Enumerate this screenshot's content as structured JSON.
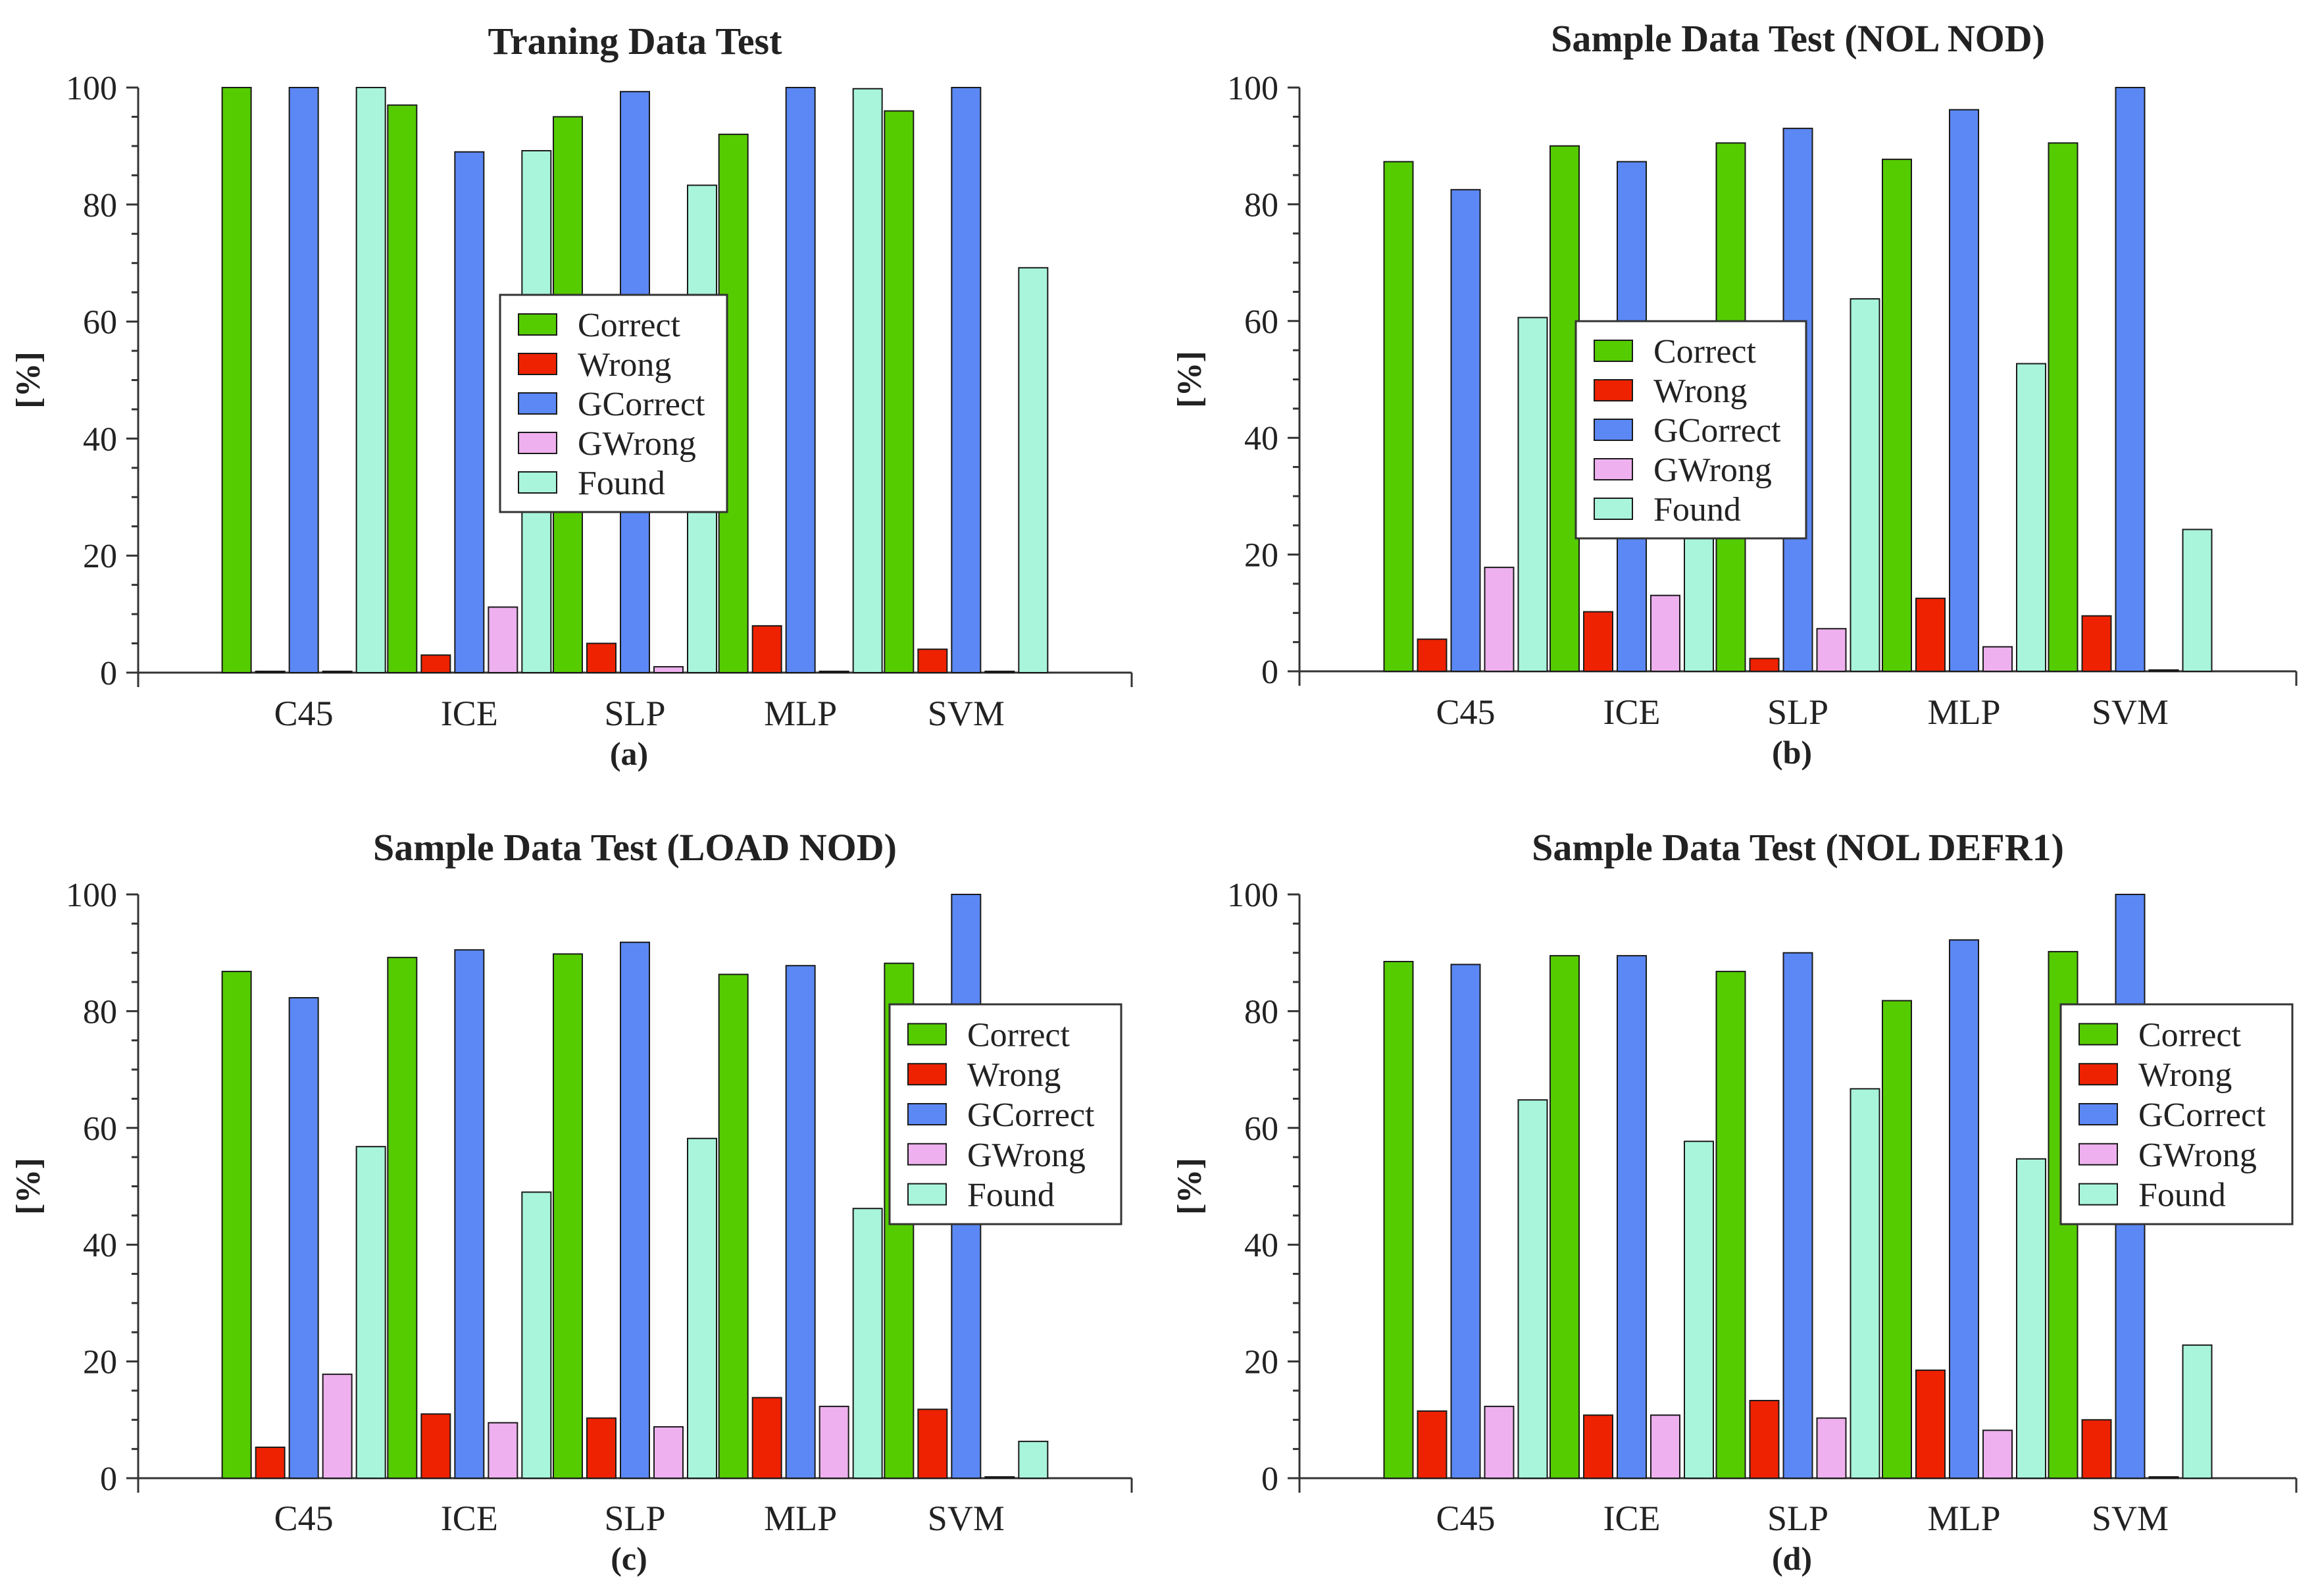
{
  "figure": {
    "series_colors": {
      "Correct": "#55CC00",
      "Wrong": "#EE2200",
      "GCorrect": "#5B88F5",
      "GWrong": "#EEB0EE",
      "Found": "#A8F5DC"
    }
  },
  "chart_data": [
    {
      "type": "bar",
      "title": "Traning Data Test",
      "ylabel": "[%]",
      "sublabel": "(a)",
      "legend": "center",
      "ylim": [
        0,
        100
      ],
      "yticks": [
        "0",
        "20",
        "40",
        "60",
        "80",
        "100"
      ],
      "categories": [
        "C45",
        "ICE",
        "SLP",
        "MLP",
        "SVM"
      ],
      "series": [
        {
          "name": "Correct",
          "values": [
            100,
            97,
            95,
            92,
            96
          ]
        },
        {
          "name": "Wrong",
          "values": [
            0,
            3,
            5,
            8,
            4
          ]
        },
        {
          "name": "GCorrect",
          "values": [
            100,
            89,
            99.3,
            100,
            100
          ]
        },
        {
          "name": "GWrong",
          "values": [
            0,
            11.2,
            1,
            0,
            0
          ]
        },
        {
          "name": "Found",
          "values": [
            100,
            89.2,
            83.3,
            99.8,
            69.2
          ]
        }
      ]
    },
    {
      "type": "bar",
      "title": "Sample Data Test (NOL NOD)",
      "ylabel": "[%]",
      "sublabel": "(b)",
      "legend": "center-left",
      "ylim": [
        0,
        100
      ],
      "yticks": [
        "0",
        "20",
        "40",
        "60",
        "80",
        "100"
      ],
      "categories": [
        "C45",
        "ICE",
        "SLP",
        "MLP",
        "SVM"
      ],
      "series": [
        {
          "name": "Correct",
          "values": [
            87.3,
            90,
            90.5,
            87.7,
            90.5
          ]
        },
        {
          "name": "Wrong",
          "values": [
            5.5,
            10.2,
            2.2,
            12.5,
            9.5
          ]
        },
        {
          "name": "GCorrect",
          "values": [
            82.5,
            87.3,
            93,
            96.2,
            100
          ]
        },
        {
          "name": "GWrong",
          "values": [
            17.8,
            13,
            7.3,
            4.2,
            0
          ]
        },
        {
          "name": "Found",
          "values": [
            60.6,
            38,
            63.8,
            52.7,
            24.3
          ]
        }
      ]
    },
    {
      "type": "bar",
      "title": "Sample Data Test (LOAD NOD)",
      "ylabel": "[%]",
      "sublabel": "(c)",
      "legend": "right",
      "ylim": [
        0,
        100
      ],
      "yticks": [
        "0",
        "20",
        "40",
        "60",
        "80",
        "100"
      ],
      "categories": [
        "C45",
        "ICE",
        "SLP",
        "MLP",
        "SVM"
      ],
      "series": [
        {
          "name": "Correct",
          "values": [
            86.8,
            89.2,
            89.8,
            86.3,
            88.2
          ]
        },
        {
          "name": "Wrong",
          "values": [
            5.3,
            11,
            10.3,
            13.8,
            11.8
          ]
        },
        {
          "name": "GCorrect",
          "values": [
            82.3,
            90.5,
            91.8,
            87.8,
            100
          ]
        },
        {
          "name": "GWrong",
          "values": [
            17.8,
            9.5,
            8.8,
            12.3,
            0
          ]
        },
        {
          "name": "Found",
          "values": [
            56.8,
            49,
            58.2,
            46.2,
            6.3
          ]
        }
      ]
    },
    {
      "type": "bar",
      "title": "Sample Data Test (NOL DEFR1)",
      "ylabel": "[%]",
      "sublabel": "(d)",
      "legend": "right",
      "ylim": [
        0,
        100
      ],
      "yticks": [
        "0",
        "20",
        "40",
        "60",
        "80",
        "100"
      ],
      "categories": [
        "C45",
        "ICE",
        "SLP",
        "MLP",
        "SVM"
      ],
      "series": [
        {
          "name": "Correct",
          "values": [
            88.5,
            89.5,
            86.8,
            81.8,
            90.2
          ]
        },
        {
          "name": "Wrong",
          "values": [
            11.5,
            10.8,
            13.3,
            18.5,
            10
          ]
        },
        {
          "name": "GCorrect",
          "values": [
            88,
            89.5,
            90,
            92.2,
            100
          ]
        },
        {
          "name": "GWrong",
          "values": [
            12.3,
            10.8,
            10.3,
            8.2,
            0
          ]
        },
        {
          "name": "Found",
          "values": [
            64.8,
            57.7,
            66.7,
            54.7,
            22.8
          ]
        }
      ]
    }
  ]
}
